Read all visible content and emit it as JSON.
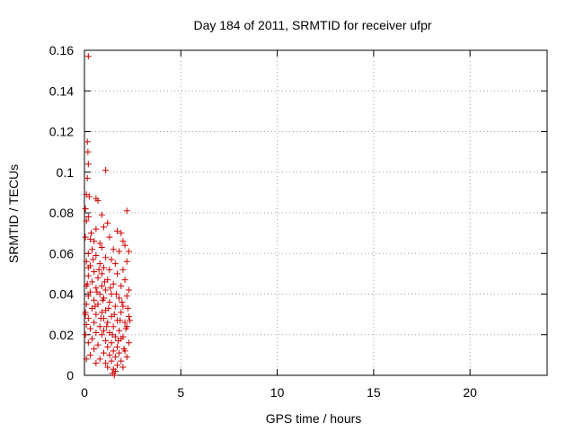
{
  "chart_data": {
    "type": "scatter",
    "title": "Day 184 of 2011, SRMTID for receiver ufpr",
    "xlabel": "GPS time / hours",
    "ylabel": "SRMTID / TECUs",
    "xlim": [
      0,
      24
    ],
    "ylim": [
      0,
      0.16
    ],
    "x_ticks": [
      0,
      5,
      10,
      15,
      20
    ],
    "y_ticks": [
      0,
      0.02,
      0.04,
      0.06,
      0.08,
      0.1,
      0.12,
      0.14,
      0.16
    ],
    "x_tick_labels": [
      "0",
      "5",
      "10",
      "15",
      "20"
    ],
    "y_tick_labels": [
      "0",
      "0.02",
      "0.04",
      "0.06",
      "0.08",
      "0.1",
      "0.12",
      "0.14",
      "0.16"
    ],
    "grid": true,
    "marker": "+",
    "color": "#cc0000",
    "series": [
      {
        "points": [
          [
            0.2,
            0.157
          ],
          [
            0.15,
            0.115
          ],
          [
            0.18,
            0.11
          ],
          [
            0.2,
            0.104
          ],
          [
            0.15,
            0.097
          ],
          [
            1.1,
            0.101
          ],
          [
            0.1,
            0.089
          ],
          [
            0.25,
            0.088
          ],
          [
            0.6,
            0.087
          ],
          [
            0.7,
            0.086
          ],
          [
            0.05,
            0.082
          ],
          [
            0.2,
            0.078
          ],
          [
            0.1,
            0.076
          ],
          [
            2.2,
            0.081
          ],
          [
            0.9,
            0.079
          ],
          [
            1.2,
            0.075
          ],
          [
            1.0,
            0.073
          ],
          [
            0.6,
            0.072
          ],
          [
            1.7,
            0.071
          ],
          [
            1.9,
            0.07
          ],
          [
            0.05,
            0.068
          ],
          [
            0.3,
            0.067
          ],
          [
            0.5,
            0.066
          ],
          [
            0.8,
            0.065
          ],
          [
            1.3,
            0.068
          ],
          [
            2.0,
            0.066
          ],
          [
            2.1,
            0.064
          ],
          [
            0.4,
            0.062
          ],
          [
            0.9,
            0.063
          ],
          [
            1.5,
            0.062
          ],
          [
            1.8,
            0.061
          ],
          [
            2.3,
            0.061
          ],
          [
            0.2,
            0.06
          ],
          [
            0.6,
            0.059
          ],
          [
            1.1,
            0.058
          ],
          [
            1.4,
            0.057
          ],
          [
            0.1,
            0.056
          ],
          [
            0.8,
            0.055
          ],
          [
            1.6,
            0.055
          ],
          [
            2.2,
            0.056
          ],
          [
            0.3,
            0.054
          ],
          [
            1.0,
            0.053
          ],
          [
            1.3,
            0.052
          ],
          [
            2.0,
            0.052
          ],
          [
            0.5,
            0.051
          ],
          [
            0.9,
            0.05
          ],
          [
            1.7,
            0.05
          ],
          [
            0.2,
            0.049
          ],
          [
            0.7,
            0.048
          ],
          [
            1.2,
            0.047
          ],
          [
            2.1,
            0.047
          ],
          [
            0.4,
            0.046
          ],
          [
            1.5,
            0.045
          ],
          [
            0.1,
            0.044
          ],
          [
            0.9,
            0.044
          ],
          [
            1.9,
            0.044
          ],
          [
            0.6,
            0.043
          ],
          [
            1.1,
            0.042
          ],
          [
            2.3,
            0.042
          ],
          [
            0.3,
            0.041
          ],
          [
            0.8,
            0.04
          ],
          [
            1.4,
            0.04
          ],
          [
            0.2,
            0.039
          ],
          [
            1.0,
            0.038
          ],
          [
            1.8,
            0.038
          ],
          [
            2.2,
            0.039
          ],
          [
            0.5,
            0.037
          ],
          [
            1.3,
            0.036
          ],
          [
            0.1,
            0.035
          ],
          [
            0.7,
            0.035
          ],
          [
            1.6,
            0.034
          ],
          [
            2.0,
            0.034
          ],
          [
            0.4,
            0.033
          ],
          [
            1.1,
            0.032
          ],
          [
            0.05,
            0.031
          ],
          [
            0.9,
            0.031
          ],
          [
            1.9,
            0.031
          ],
          [
            0.6,
            0.03
          ],
          [
            1.4,
            0.029
          ],
          [
            2.3,
            0.029
          ],
          [
            0.2,
            0.028
          ],
          [
            1.0,
            0.028
          ],
          [
            1.7,
            0.027
          ],
          [
            0.5,
            0.026
          ],
          [
            1.2,
            0.026
          ],
          [
            2.1,
            0.026
          ],
          [
            0.1,
            0.025
          ],
          [
            0.8,
            0.024
          ],
          [
            1.5,
            0.024
          ],
          [
            2.2,
            0.024
          ],
          [
            0.3,
            0.023
          ],
          [
            1.0,
            0.022
          ],
          [
            1.8,
            0.022
          ],
          [
            0.6,
            0.021
          ],
          [
            1.3,
            0.021
          ],
          [
            0.05,
            0.02
          ],
          [
            0.9,
            0.02
          ],
          [
            1.6,
            0.019
          ],
          [
            2.0,
            0.019
          ],
          [
            0.4,
            0.018
          ],
          [
            1.1,
            0.017
          ],
          [
            1.9,
            0.018
          ],
          [
            0.2,
            0.016
          ],
          [
            1.4,
            0.016
          ],
          [
            2.3,
            0.016
          ],
          [
            0.7,
            0.015
          ],
          [
            1.2,
            0.014
          ],
          [
            1.7,
            0.014
          ],
          [
            0.5,
            0.013
          ],
          [
            1.5,
            0.012
          ],
          [
            2.1,
            0.012
          ],
          [
            1.0,
            0.011
          ],
          [
            1.8,
            0.011
          ],
          [
            0.3,
            0.01
          ],
          [
            1.3,
            0.01
          ],
          [
            1.6,
            0.009
          ],
          [
            2.2,
            0.009
          ],
          [
            0.1,
            0.008
          ],
          [
            0.8,
            0.008
          ],
          [
            1.4,
            0.007
          ],
          [
            1.9,
            0.007
          ],
          [
            0.6,
            0.006
          ],
          [
            1.1,
            0.006
          ],
          [
            1.7,
            0.005
          ],
          [
            1.2,
            0.004
          ],
          [
            2.0,
            0.004
          ],
          [
            1.5,
            0.003
          ],
          [
            1.6,
            0.002
          ],
          [
            1.45,
            0.001
          ],
          [
            1.55,
            0.0
          ],
          [
            0.05,
            0.03
          ],
          [
            0.2,
            0.053
          ],
          [
            0.45,
            0.057
          ],
          [
            0.75,
            0.052
          ],
          [
            1.05,
            0.046
          ],
          [
            1.35,
            0.043
          ],
          [
            1.65,
            0.04
          ],
          [
            1.95,
            0.036
          ],
          [
            2.25,
            0.033
          ],
          [
            0.35,
            0.07
          ],
          [
            0.65,
            0.041
          ],
          [
            0.95,
            0.037
          ],
          [
            1.25,
            0.033
          ],
          [
            1.55,
            0.03
          ],
          [
            1.85,
            0.027
          ],
          [
            2.15,
            0.023
          ],
          [
            0.15,
            0.045
          ],
          [
            0.55,
            0.034
          ],
          [
            0.85,
            0.028
          ],
          [
            1.15,
            0.024
          ],
          [
            1.45,
            0.02
          ],
          [
            1.75,
            0.017
          ],
          [
            2.05,
            0.013
          ],
          [
            2.35,
            0.027
          ]
        ]
      }
    ]
  }
}
